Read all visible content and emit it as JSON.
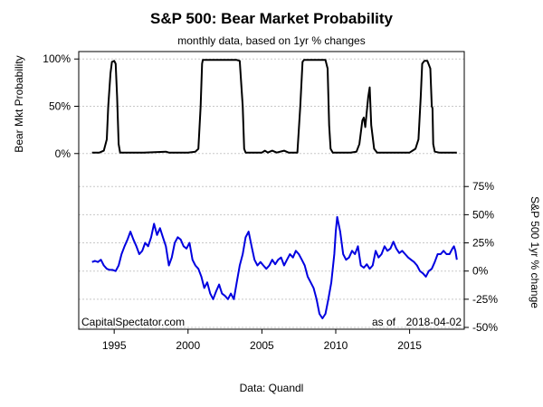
{
  "chart_data": {
    "type": "line",
    "title": "S&P 500: Bear Market Probability",
    "subtitle": "monthly data, based on 1yr % changes",
    "source": "Data: Quandl",
    "credit": "CapitalSpectator.com",
    "as_of_label": "as of",
    "as_of_date": "2018-04-02",
    "x_ticks": [
      "1995",
      "2000",
      "2005",
      "2010",
      "2015"
    ],
    "x_tick_values": [
      1995,
      2000,
      2005,
      2010,
      2015
    ],
    "xlim": [
      1992.6,
      2018.7
    ],
    "panels": [
      {
        "name": "top",
        "ylabel": "Bear Mkt Probability",
        "ylim": [
          -0.05,
          1.05
        ],
        "y_ticks": [
          "100%",
          "50%",
          "0%"
        ],
        "y_tick_values": [
          1.0,
          0.5,
          0.0
        ],
        "grid": true,
        "series": [
          {
            "color": "#000000",
            "points": [
              [
                1993.5,
                0.01
              ],
              [
                1994.0,
                0.01
              ],
              [
                1994.3,
                0.03
              ],
              [
                1994.5,
                0.15
              ],
              [
                1994.6,
                0.5
              ],
              [
                1994.75,
                0.85
              ],
              [
                1994.85,
                0.97
              ],
              [
                1995.0,
                0.98
              ],
              [
                1995.1,
                0.95
              ],
              [
                1995.2,
                0.6
              ],
              [
                1995.3,
                0.1
              ],
              [
                1995.4,
                0.01
              ],
              [
                1997.0,
                0.01
              ],
              [
                1998.5,
                0.02
              ],
              [
                1998.7,
                0.01
              ],
              [
                2000.0,
                0.01
              ],
              [
                2000.5,
                0.02
              ],
              [
                2000.7,
                0.05
              ],
              [
                2000.85,
                0.5
              ],
              [
                2000.95,
                0.95
              ],
              [
                2001.0,
                0.99
              ],
              [
                2003.3,
                0.99
              ],
              [
                2003.5,
                0.98
              ],
              [
                2003.7,
                0.5
              ],
              [
                2003.8,
                0.05
              ],
              [
                2003.9,
                0.01
              ],
              [
                2005.0,
                0.01
              ],
              [
                2005.2,
                0.03
              ],
              [
                2005.4,
                0.01
              ],
              [
                2005.7,
                0.03
              ],
              [
                2006.0,
                0.01
              ],
              [
                2006.5,
                0.03
              ],
              [
                2006.8,
                0.01
              ],
              [
                2007.4,
                0.01
              ],
              [
                2007.6,
                0.5
              ],
              [
                2007.75,
                0.97
              ],
              [
                2007.85,
                0.99
              ],
              [
                2009.3,
                0.99
              ],
              [
                2009.45,
                0.9
              ],
              [
                2009.55,
                0.3
              ],
              [
                2009.65,
                0.05
              ],
              [
                2009.8,
                0.01
              ],
              [
                2011.0,
                0.01
              ],
              [
                2011.4,
                0.02
              ],
              [
                2011.6,
                0.1
              ],
              [
                2011.8,
                0.35
              ],
              [
                2011.9,
                0.38
              ],
              [
                2012.0,
                0.28
              ],
              [
                2012.2,
                0.6
              ],
              [
                2012.3,
                0.7
              ],
              [
                2012.4,
                0.3
              ],
              [
                2012.6,
                0.05
              ],
              [
                2012.8,
                0.01
              ],
              [
                2015.0,
                0.01
              ],
              [
                2015.4,
                0.05
              ],
              [
                2015.6,
                0.15
              ],
              [
                2015.75,
                0.6
              ],
              [
                2015.85,
                0.95
              ],
              [
                2016.0,
                0.98
              ],
              [
                2016.2,
                0.98
              ],
              [
                2016.4,
                0.9
              ],
              [
                2016.5,
                0.5
              ],
              [
                2016.55,
                0.48
              ],
              [
                2016.6,
                0.1
              ],
              [
                2016.7,
                0.02
              ],
              [
                2017.0,
                0.01
              ],
              [
                2018.2,
                0.01
              ]
            ]
          }
        ]
      },
      {
        "name": "bottom",
        "ylabel": "S&P 500 1yr % change",
        "ylim": [
          -0.5,
          0.8
        ],
        "y_ticks": [
          "75%",
          "50%",
          "25%",
          "0%",
          "-25%",
          "-50%"
        ],
        "y_tick_values": [
          0.75,
          0.5,
          0.25,
          0.0,
          -0.25,
          -0.5
        ],
        "grid": true,
        "series": [
          {
            "color": "#0000e0",
            "points": [
              [
                1993.5,
                0.08
              ],
              [
                1993.7,
                0.09
              ],
              [
                1993.9,
                0.08
              ],
              [
                1994.1,
                0.1
              ],
              [
                1994.3,
                0.05
              ],
              [
                1994.5,
                0.02
              ],
              [
                1994.7,
                0.01
              ],
              [
                1994.9,
                0.01
              ],
              [
                1995.1,
                0.0
              ],
              [
                1995.3,
                0.05
              ],
              [
                1995.5,
                0.15
              ],
              [
                1995.7,
                0.22
              ],
              [
                1995.9,
                0.28
              ],
              [
                1996.1,
                0.35
              ],
              [
                1996.3,
                0.28
              ],
              [
                1996.5,
                0.22
              ],
              [
                1996.7,
                0.15
              ],
              [
                1996.9,
                0.18
              ],
              [
                1997.1,
                0.25
              ],
              [
                1997.3,
                0.22
              ],
              [
                1997.5,
                0.3
              ],
              [
                1997.7,
                0.42
              ],
              [
                1997.9,
                0.32
              ],
              [
                1998.1,
                0.38
              ],
              [
                1998.3,
                0.3
              ],
              [
                1998.5,
                0.22
              ],
              [
                1998.7,
                0.05
              ],
              [
                1998.9,
                0.12
              ],
              [
                1999.1,
                0.25
              ],
              [
                1999.3,
                0.3
              ],
              [
                1999.5,
                0.28
              ],
              [
                1999.7,
                0.22
              ],
              [
                1999.9,
                0.2
              ],
              [
                2000.1,
                0.25
              ],
              [
                2000.3,
                0.1
              ],
              [
                2000.5,
                0.05
              ],
              [
                2000.7,
                0.02
              ],
              [
                2000.9,
                -0.05
              ],
              [
                2001.1,
                -0.15
              ],
              [
                2001.3,
                -0.1
              ],
              [
                2001.5,
                -0.2
              ],
              [
                2001.7,
                -0.25
              ],
              [
                2001.9,
                -0.18
              ],
              [
                2002.1,
                -0.12
              ],
              [
                2002.3,
                -0.2
              ],
              [
                2002.5,
                -0.22
              ],
              [
                2002.7,
                -0.25
              ],
              [
                2002.9,
                -0.2
              ],
              [
                2003.1,
                -0.25
              ],
              [
                2003.3,
                -0.1
              ],
              [
                2003.5,
                0.05
              ],
              [
                2003.7,
                0.15
              ],
              [
                2003.9,
                0.3
              ],
              [
                2004.1,
                0.35
              ],
              [
                2004.3,
                0.22
              ],
              [
                2004.5,
                0.1
              ],
              [
                2004.7,
                0.05
              ],
              [
                2004.9,
                0.08
              ],
              [
                2005.1,
                0.05
              ],
              [
                2005.3,
                0.02
              ],
              [
                2005.5,
                0.05
              ],
              [
                2005.7,
                0.1
              ],
              [
                2005.9,
                0.06
              ],
              [
                2006.1,
                0.1
              ],
              [
                2006.3,
                0.12
              ],
              [
                2006.5,
                0.05
              ],
              [
                2006.7,
                0.1
              ],
              [
                2006.9,
                0.15
              ],
              [
                2007.1,
                0.12
              ],
              [
                2007.3,
                0.18
              ],
              [
                2007.5,
                0.15
              ],
              [
                2007.7,
                0.1
              ],
              [
                2007.9,
                0.05
              ],
              [
                2008.1,
                -0.05
              ],
              [
                2008.3,
                -0.1
              ],
              [
                2008.5,
                -0.15
              ],
              [
                2008.7,
                -0.25
              ],
              [
                2008.9,
                -0.38
              ],
              [
                2009.1,
                -0.42
              ],
              [
                2009.3,
                -0.38
              ],
              [
                2009.5,
                -0.25
              ],
              [
                2009.7,
                -0.1
              ],
              [
                2009.9,
                0.15
              ],
              [
                2010.0,
                0.35
              ],
              [
                2010.1,
                0.48
              ],
              [
                2010.3,
                0.35
              ],
              [
                2010.5,
                0.15
              ],
              [
                2010.7,
                0.1
              ],
              [
                2010.9,
                0.12
              ],
              [
                2011.1,
                0.18
              ],
              [
                2011.3,
                0.15
              ],
              [
                2011.5,
                0.22
              ],
              [
                2011.7,
                0.05
              ],
              [
                2011.9,
                0.03
              ],
              [
                2012.1,
                0.06
              ],
              [
                2012.3,
                0.02
              ],
              [
                2012.5,
                0.05
              ],
              [
                2012.7,
                0.18
              ],
              [
                2012.9,
                0.12
              ],
              [
                2013.1,
                0.15
              ],
              [
                2013.3,
                0.22
              ],
              [
                2013.5,
                0.18
              ],
              [
                2013.7,
                0.2
              ],
              [
                2013.9,
                0.26
              ],
              [
                2014.1,
                0.2
              ],
              [
                2014.3,
                0.16
              ],
              [
                2014.5,
                0.18
              ],
              [
                2014.7,
                0.15
              ],
              [
                2014.9,
                0.12
              ],
              [
                2015.1,
                0.1
              ],
              [
                2015.3,
                0.08
              ],
              [
                2015.5,
                0.05
              ],
              [
                2015.7,
                0.0
              ],
              [
                2015.9,
                -0.02
              ],
              [
                2016.1,
                -0.05
              ],
              [
                2016.3,
                0.0
              ],
              [
                2016.5,
                0.02
              ],
              [
                2016.7,
                0.08
              ],
              [
                2016.9,
                0.15
              ],
              [
                2017.1,
                0.15
              ],
              [
                2017.3,
                0.18
              ],
              [
                2017.5,
                0.15
              ],
              [
                2017.7,
                0.15
              ],
              [
                2017.9,
                0.2
              ],
              [
                2018.0,
                0.22
              ],
              [
                2018.1,
                0.18
              ],
              [
                2018.2,
                0.1
              ]
            ]
          }
        ]
      }
    ]
  }
}
